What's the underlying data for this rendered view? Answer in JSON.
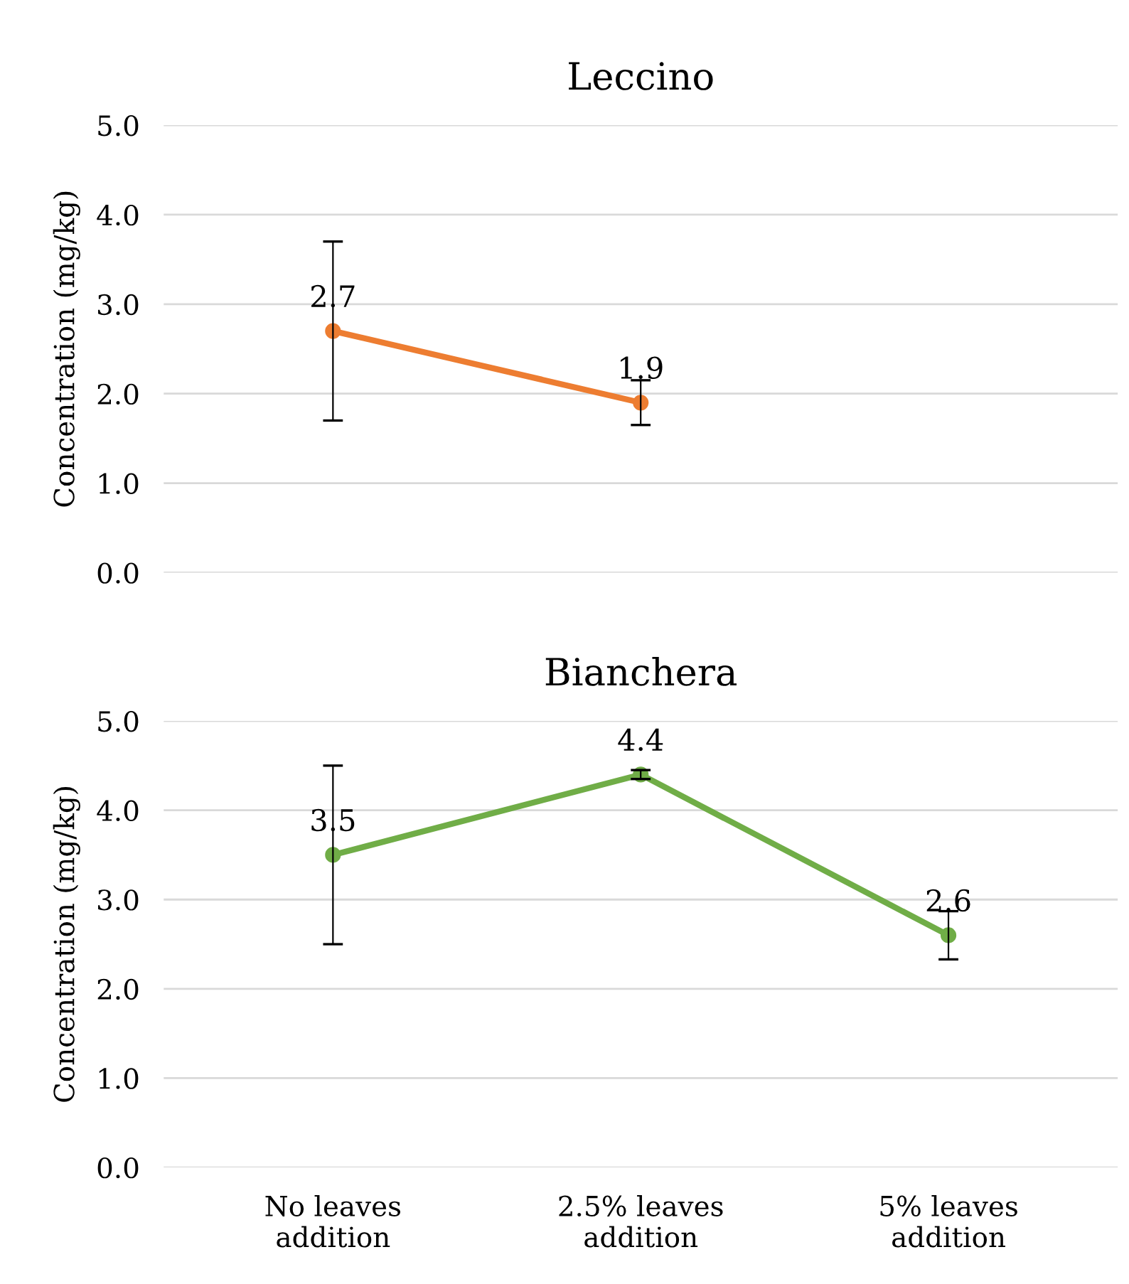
{
  "chart_data": [
    {
      "type": "line",
      "title": "Leccino",
      "ylabel": "Concentration (mg/kg)",
      "categories": [
        null,
        null,
        null
      ],
      "series": [
        {
          "color": "#ed7d31",
          "values": [
            2.7,
            1.9,
            null
          ],
          "errors": [
            1.0,
            0.25,
            null
          ]
        }
      ],
      "ylim": [
        0,
        5
      ],
      "yticks": [
        {
          "value": 0,
          "label": "0.0"
        },
        {
          "value": 1,
          "label": "1.0"
        },
        {
          "value": 2,
          "label": "2.0"
        },
        {
          "value": 3,
          "label": "3.0"
        },
        {
          "value": 4,
          "label": "4.0"
        },
        {
          "value": 5,
          "label": "5.0"
        }
      ],
      "grid": "y",
      "marker": "circle",
      "data_labels": true,
      "tick_labels": "y"
    },
    {
      "type": "line",
      "title": "Bianchera",
      "ylabel": "Concentration (mg/kg)",
      "categories": [
        "No leaves\naddition",
        "2.5% leaves\naddition",
        "5% leaves\naddition"
      ],
      "series": [
        {
          "color": "#70ad47",
          "values": [
            3.5,
            4.4,
            2.6
          ],
          "errors": [
            1.0,
            0.05,
            0.27
          ]
        }
      ],
      "ylim": [
        0,
        5
      ],
      "yticks": [
        {
          "value": 0,
          "label": "0.0"
        },
        {
          "value": 1,
          "label": "1.0"
        },
        {
          "value": 2,
          "label": "2.0"
        },
        {
          "value": 3,
          "label": "3.0"
        },
        {
          "value": 4,
          "label": "4.0"
        },
        {
          "value": 5,
          "label": "5.0"
        }
      ],
      "grid": "y",
      "marker": "circle",
      "data_labels": true
    }
  ]
}
